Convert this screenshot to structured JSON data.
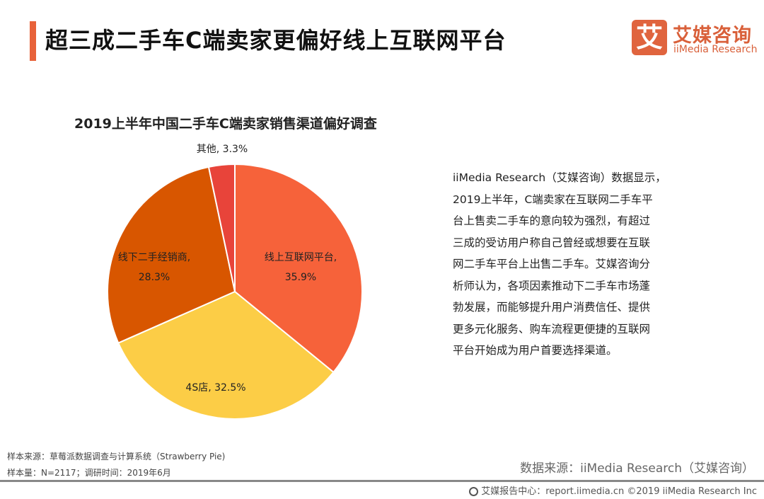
{
  "header": {
    "title": "超三成二手车C端卖家更偏好线上互联网平台",
    "accent_color": "#e8623a",
    "logo": {
      "mark": "艾",
      "cn": "艾媒咨询",
      "en": "iiMedia Research"
    }
  },
  "chart_data": {
    "type": "pie",
    "title": "2019上半年中国二手车C端卖家销售渠道偏好调查",
    "start": "12 o'clock, clockwise",
    "slices": [
      {
        "label": "线上互联网平台,",
        "value": 35.9,
        "value_label": "35.9%",
        "color": "#f6623a"
      },
      {
        "label": "4S店,",
        "value": 32.5,
        "value_label": "32.5%",
        "color": "#fccd46"
      },
      {
        "label": "线下二手经销商,",
        "value": 28.3,
        "value_label": "28.3%",
        "color": "#d85600"
      },
      {
        "label": "其他,",
        "value": 3.3,
        "value_label": "3.3%",
        "color": "#e8443a"
      }
    ]
  },
  "description": [
    "iiMedia Research（艾媒咨询）数据显示，",
    "2019上半年，C端卖家在互联网二手车平",
    "台上售卖二手车的意向较为强烈，有超过",
    "三成的受访用户称自己曾经或想要在互联",
    "网二手车平台上出售二手车。艾媒咨询分",
    "析师认为，各项因素推动下二手车市场蓬",
    "勃发展，而能够提升用户消费信任、提供",
    "更多元化服务、购车流程更便捷的互联网",
    "平台开始成为用户首要选择渠道。"
  ],
  "sources": {
    "sample_source": "样本来源：草莓派数据调查与计算系统（Strawberry Pie)",
    "sample_size": "样本量：N=2117；调研时间：2019年6月",
    "data_source": "数据来源：iiMedia Research（艾媒咨询）"
  },
  "footer": {
    "icon": "globe-icon",
    "text": "艾媒报告中心：report.iimedia.cn  ©2019  iiMedia Research  Inc"
  }
}
